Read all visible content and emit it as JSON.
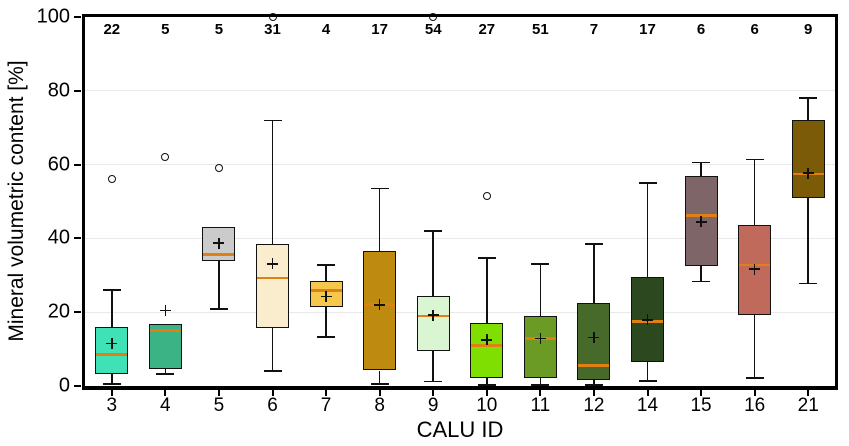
{
  "chart_data": {
    "type": "boxplot",
    "title": "",
    "xlabel": "CALU ID",
    "ylabel": "Mineral volumetric content [%]",
    "ylim": [
      0,
      100
    ],
    "y_ticks": [
      0,
      20,
      40,
      60,
      80,
      100
    ],
    "grid": "horizontal-light",
    "legend": "none",
    "median_color": "#e07f12",
    "frame_color": "#000000",
    "categories": [
      "3",
      "4",
      "5",
      "6",
      "7",
      "8",
      "9",
      "10",
      "11",
      "12",
      "14",
      "15",
      "16",
      "21"
    ],
    "sample_counts": [
      22,
      5,
      5,
      31,
      4,
      17,
      54,
      27,
      51,
      7,
      17,
      6,
      6,
      9
    ],
    "boxes": [
      {
        "id": "3",
        "n": 22,
        "color": "#3ee2b6",
        "whisker_low": 0.5,
        "q1": 3.2,
        "median": 8.5,
        "q3": 16.0,
        "whisker_high": 26.0,
        "mean": 11.5,
        "outliers": [
          56
        ]
      },
      {
        "id": "4",
        "n": 5,
        "color": "#3cb384",
        "whisker_low": 3.2,
        "q1": 4.5,
        "median": 15.0,
        "q3": 16.8,
        "whisker_high": 16.8,
        "mean": 20.5,
        "outliers": [
          62
        ]
      },
      {
        "id": "5",
        "n": 5,
        "color": "#cbcbcb",
        "whisker_low": 20.8,
        "q1": 33.9,
        "median": 35.7,
        "q3": 43.2,
        "whisker_high": 43.2,
        "mean": 38.7,
        "outliers": [
          59
        ]
      },
      {
        "id": "6",
        "n": 31,
        "color": "#faedce",
        "whisker_low": 4.0,
        "q1": 15.7,
        "median": 29.3,
        "q3": 38.4,
        "whisker_high": 72.0,
        "mean": 33.1,
        "outliers": [
          100
        ]
      },
      {
        "id": "7",
        "n": 4,
        "color": "#f5c84d",
        "whisker_low": 13.3,
        "q1": 21.3,
        "median": 25.9,
        "q3": 28.5,
        "whisker_high": 32.8,
        "mean": 24.3,
        "outliers": []
      },
      {
        "id": "8",
        "n": 17,
        "color": "#be8a10",
        "whisker_low": 0.5,
        "q1": 4.2,
        "median": 22.1,
        "q3": 36.5,
        "whisker_high": 53.5,
        "mean": 22.0,
        "outliers": []
      },
      {
        "id": "9",
        "n": 54,
        "color": "#daf5d1",
        "whisker_low": 1.2,
        "q1": 9.6,
        "median": 19.0,
        "q3": 24.3,
        "whisker_high": 42.0,
        "mean": 19.2,
        "outliers": [
          100
        ]
      },
      {
        "id": "10",
        "n": 27,
        "color": "#7edf00",
        "whisker_low": 0.3,
        "q1": 2.1,
        "median": 11.0,
        "q3": 17.1,
        "whisker_high": 34.7,
        "mean": 12.5,
        "outliers": [
          51.5
        ]
      },
      {
        "id": "11",
        "n": 51,
        "color": "#6b9b24",
        "whisker_low": 0.3,
        "q1": 2.2,
        "median": 12.8,
        "q3": 19.0,
        "whisker_high": 33.0,
        "mean": 12.9,
        "outliers": []
      },
      {
        "id": "12",
        "n": 7,
        "color": "#476a2b",
        "whisker_low": 0.3,
        "q1": 1.5,
        "median": 5.6,
        "q3": 22.5,
        "whisker_high": 38.5,
        "mean": 13.1,
        "outliers": []
      },
      {
        "id": "14",
        "n": 17,
        "color": "#2c481e",
        "whisker_low": 1.3,
        "q1": 6.4,
        "median": 17.5,
        "q3": 29.5,
        "whisker_high": 55.0,
        "mean": 17.9,
        "outliers": []
      },
      {
        "id": "15",
        "n": 6,
        "color": "#7e6568",
        "whisker_low": 28.3,
        "q1": 32.5,
        "median": 46.2,
        "q3": 56.8,
        "whisker_high": 60.6,
        "mean": 44.5,
        "outliers": []
      },
      {
        "id": "16",
        "n": 6,
        "color": "#c06a5c",
        "whisker_low": 2.1,
        "q1": 19.2,
        "median": 32.8,
        "q3": 43.6,
        "whisker_high": 61.4,
        "mean": 31.7,
        "outliers": []
      },
      {
        "id": "21",
        "n": 9,
        "color": "#7b5b07",
        "whisker_low": 27.8,
        "q1": 51.0,
        "median": 57.4,
        "q3": 72.0,
        "whisker_high": 78.0,
        "mean": 57.7,
        "outliers": []
      }
    ]
  }
}
